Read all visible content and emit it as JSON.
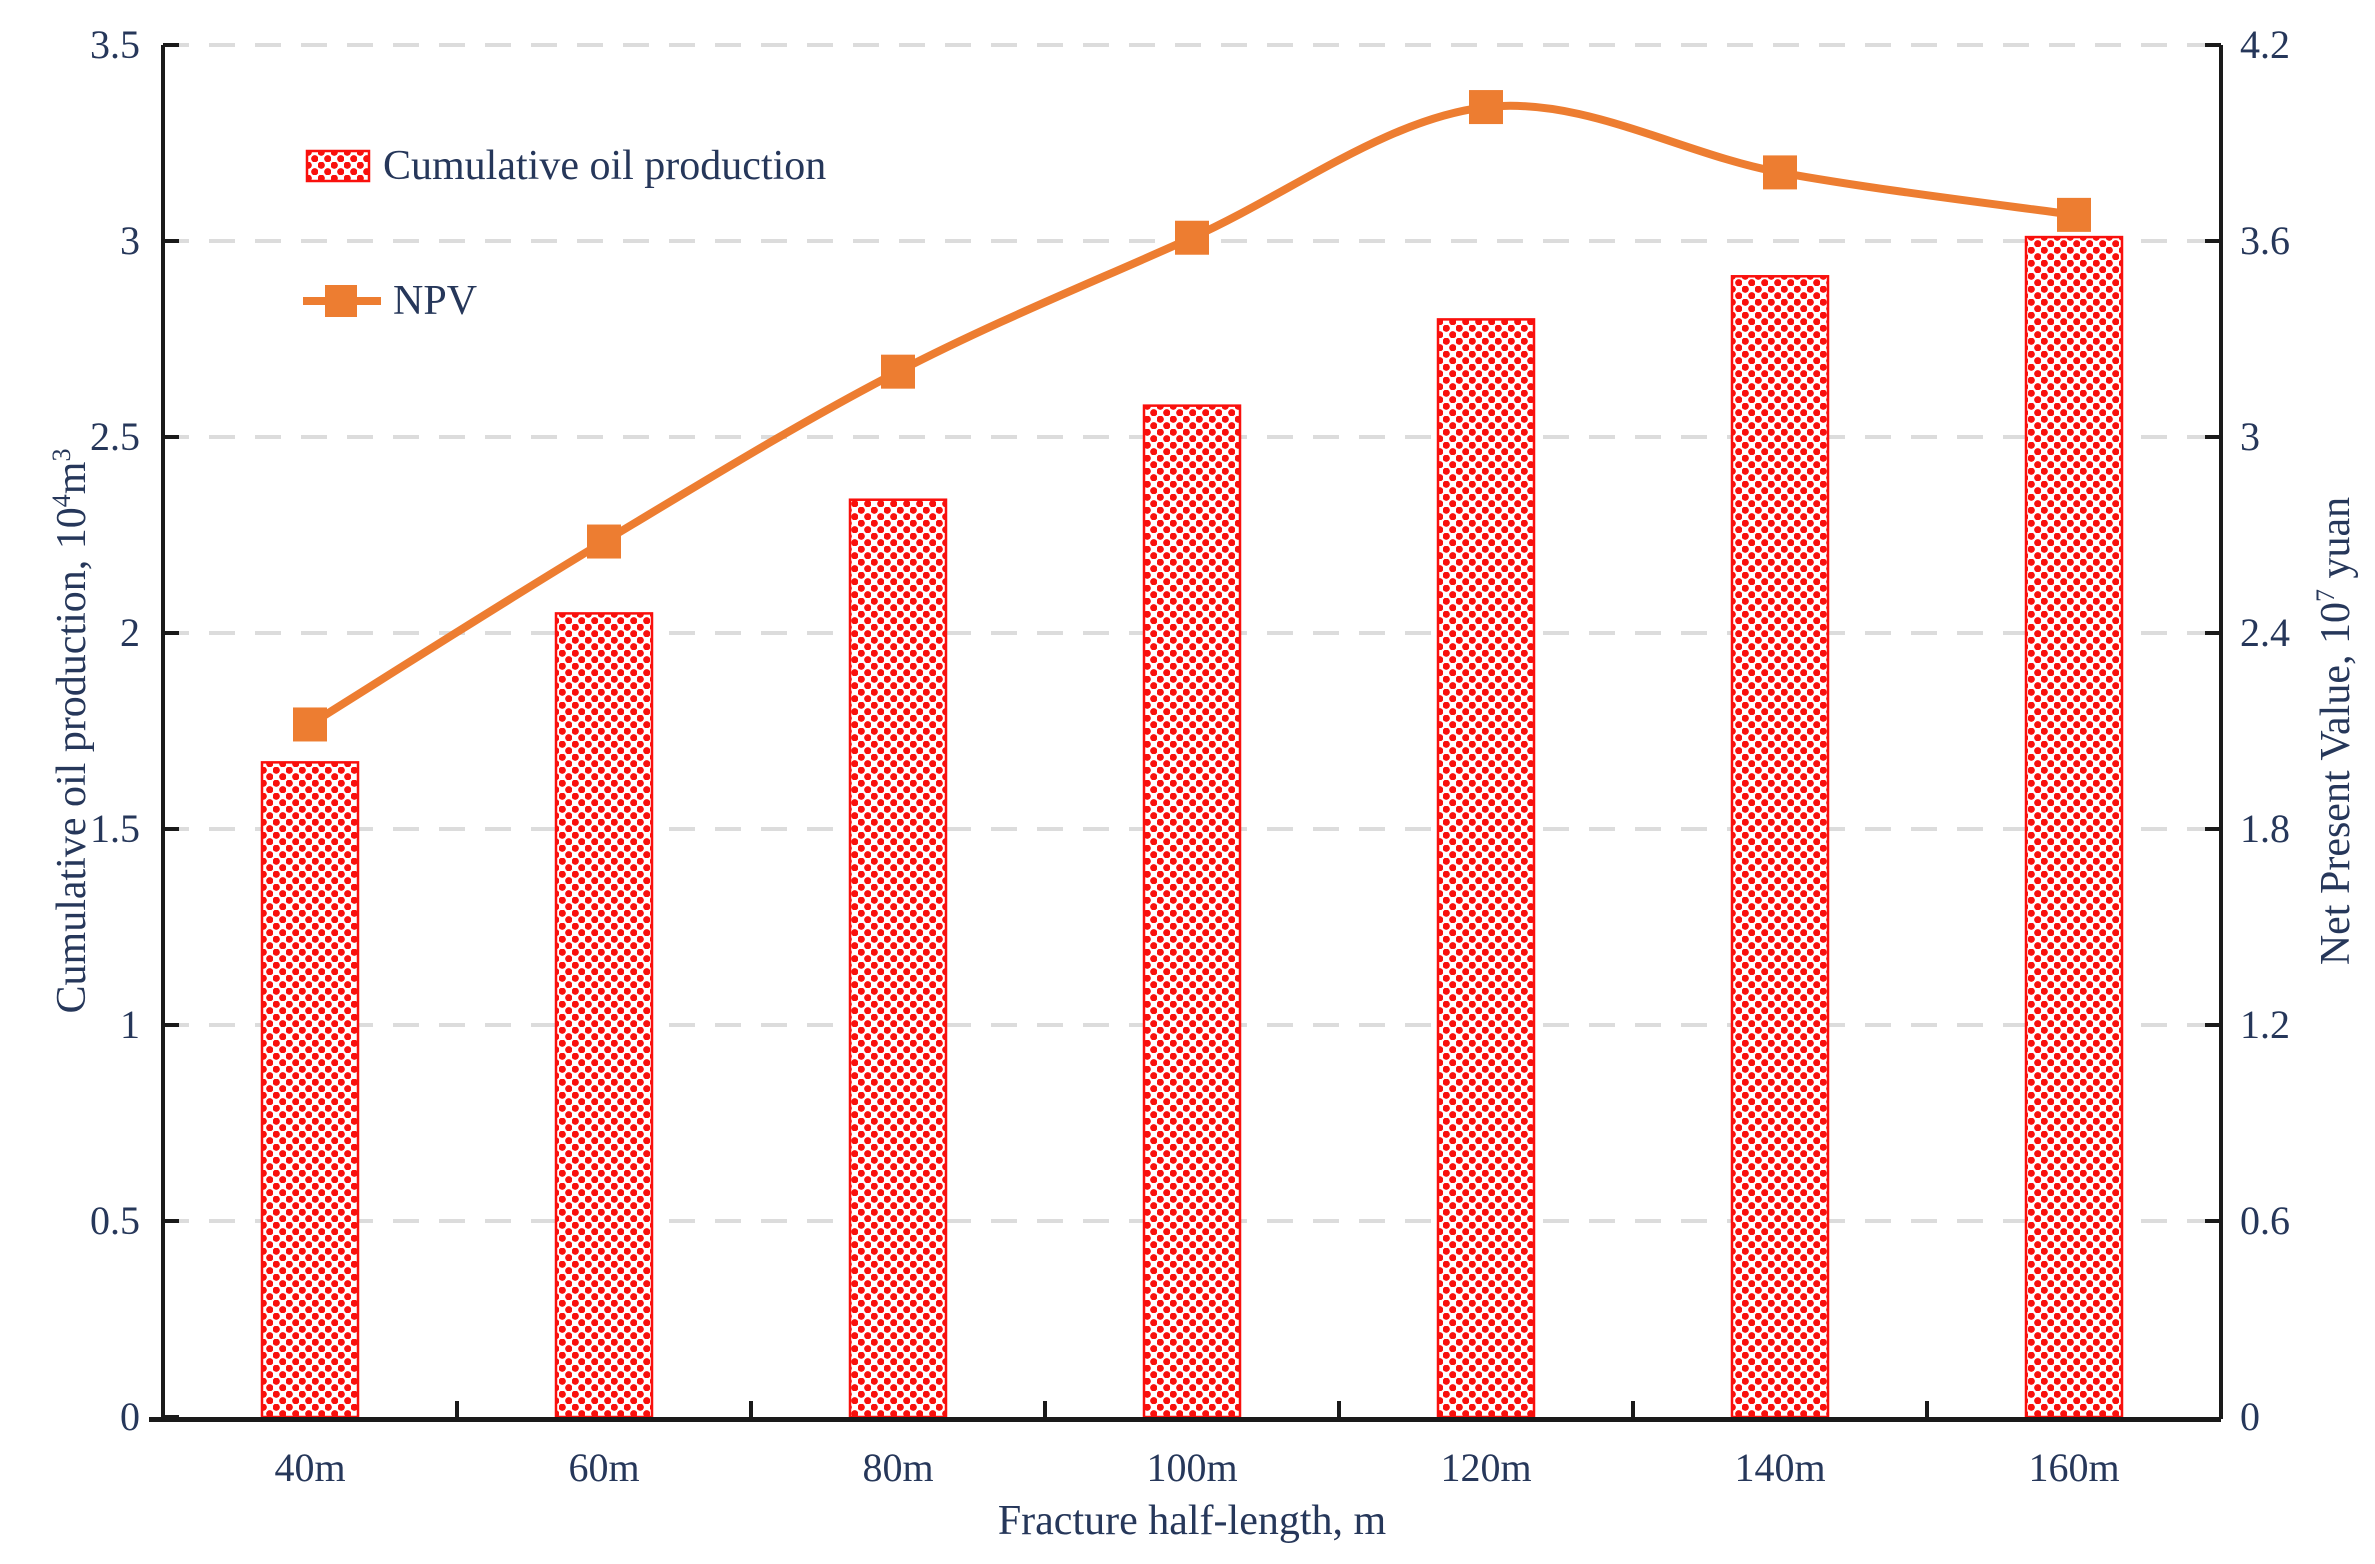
{
  "chart_data": {
    "type": "bar+line combo",
    "title": "",
    "categories": [
      "40m",
      "60m",
      "80m",
      "100m",
      "120m",
      "140m",
      "160m"
    ],
    "series": [
      {
        "name": "Cumulative oil production",
        "type": "bar",
        "axis": "left",
        "fill": "red dotted pattern on white",
        "color": "#F9100D",
        "values": [
          1.67,
          2.05,
          2.34,
          2.58,
          2.8,
          2.91,
          3.01
        ]
      },
      {
        "name": "NPV",
        "type": "line",
        "axis": "right",
        "marker": "square",
        "smooth": true,
        "color": "#ED7D31",
        "values": [
          2.12,
          2.68,
          3.2,
          3.61,
          4.01,
          3.81,
          3.68
        ]
      }
    ],
    "axes": {
      "left": {
        "title_pre": "Cumulative oil production, 10",
        "title_sup": "4",
        "title_mid": "m",
        "title_sup2": "3",
        "range": [
          0,
          3.5
        ],
        "step": 0.5,
        "ticks_desc": [
          "3.5",
          "3",
          "2.5",
          "2",
          "1.5",
          "1",
          "0.5",
          "0"
        ]
      },
      "right": {
        "title_pre": "Net Present Value, 10",
        "title_sup": "7",
        "title_post": " yuan",
        "range": [
          0,
          4.2
        ],
        "step": 0.6,
        "ticks_desc": [
          "4.2",
          "3.6",
          "3",
          "2.4",
          "1.8",
          "1.2",
          "0.6",
          "0"
        ]
      },
      "x": {
        "title": "Fracture half-length, m"
      }
    },
    "legend": {
      "position": "top-left inside plot",
      "items": [
        "Cumulative oil production",
        "NPV"
      ]
    },
    "grid": {
      "horizontal": "dashed",
      "color": "#dcdcdc"
    },
    "axis_line_color": "#1a1a1a"
  }
}
